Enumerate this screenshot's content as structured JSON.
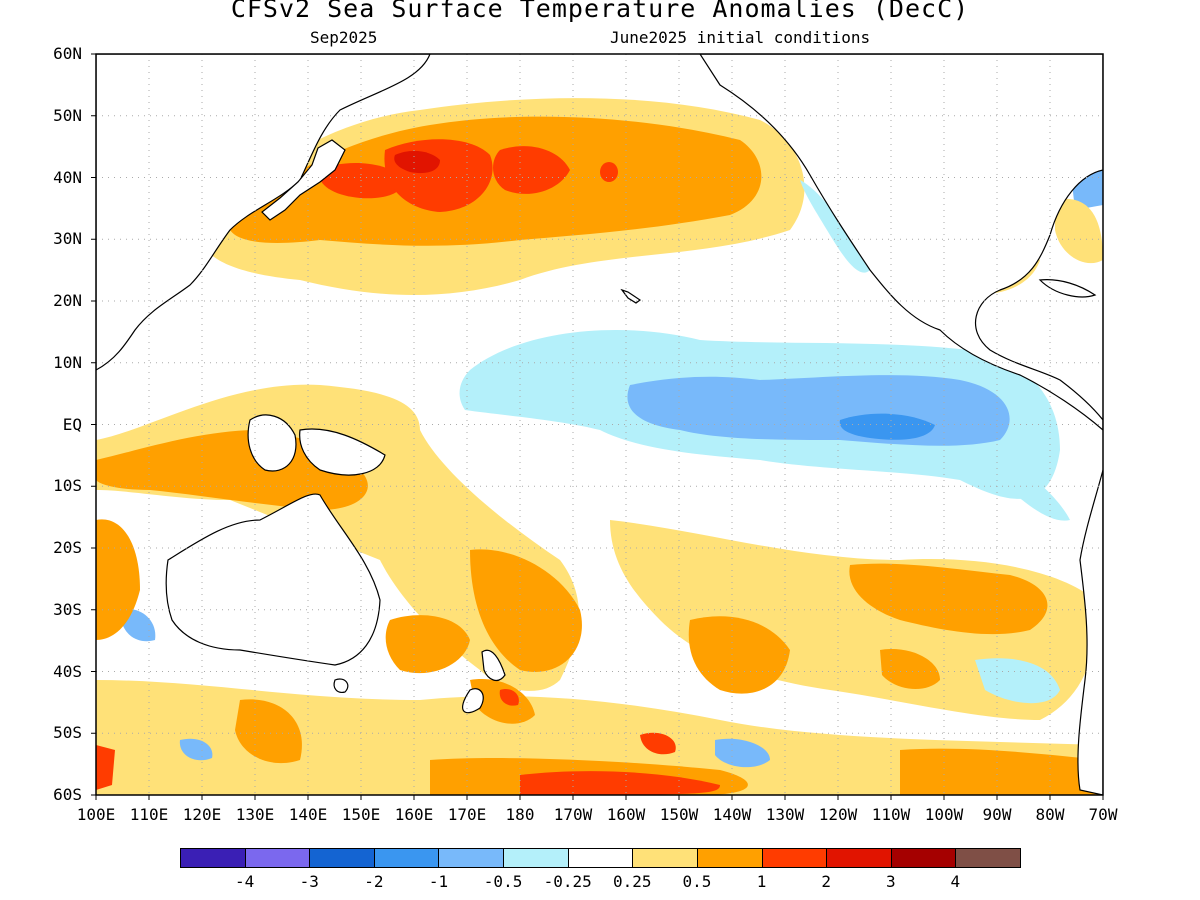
{
  "title": "CFSv2 Sea Surface Temperature Anomalies (DecC)",
  "subtitle_left": "Sep2025",
  "subtitle_right": "June2025 initial conditions",
  "lat_labels": [
    "60N",
    "50N",
    "40N",
    "30N",
    "20N",
    "10N",
    "EQ",
    "10S",
    "20S",
    "30S",
    "40S",
    "50S",
    "60S"
  ],
  "lon_labels": [
    "100E",
    "110E",
    "120E",
    "130E",
    "140E",
    "150E",
    "160E",
    "170E",
    "180",
    "170W",
    "160W",
    "150W",
    "140W",
    "130W",
    "120W",
    "110W",
    "100W",
    "90W",
    "80W",
    "70W"
  ],
  "colorbar": {
    "colors": [
      "#3a1fb5",
      "#7b68ee",
      "#1464d2",
      "#3a96f0",
      "#78b9fa",
      "#b4f0fa",
      "#ffffff",
      "#ffe178",
      "#ffa000",
      "#ff3c00",
      "#e11400",
      "#a50000",
      "#7f4f46"
    ],
    "labels": [
      "-4",
      "-3",
      "-2",
      "-1",
      "-0.5",
      "-0.25",
      "0.25",
      "0.5",
      "1",
      "2",
      "3",
      "4"
    ]
  },
  "colors": {
    "land_outline": "#000000",
    "grid": "#aaaaaa",
    "ocean_neutral": "#ffffff"
  }
}
